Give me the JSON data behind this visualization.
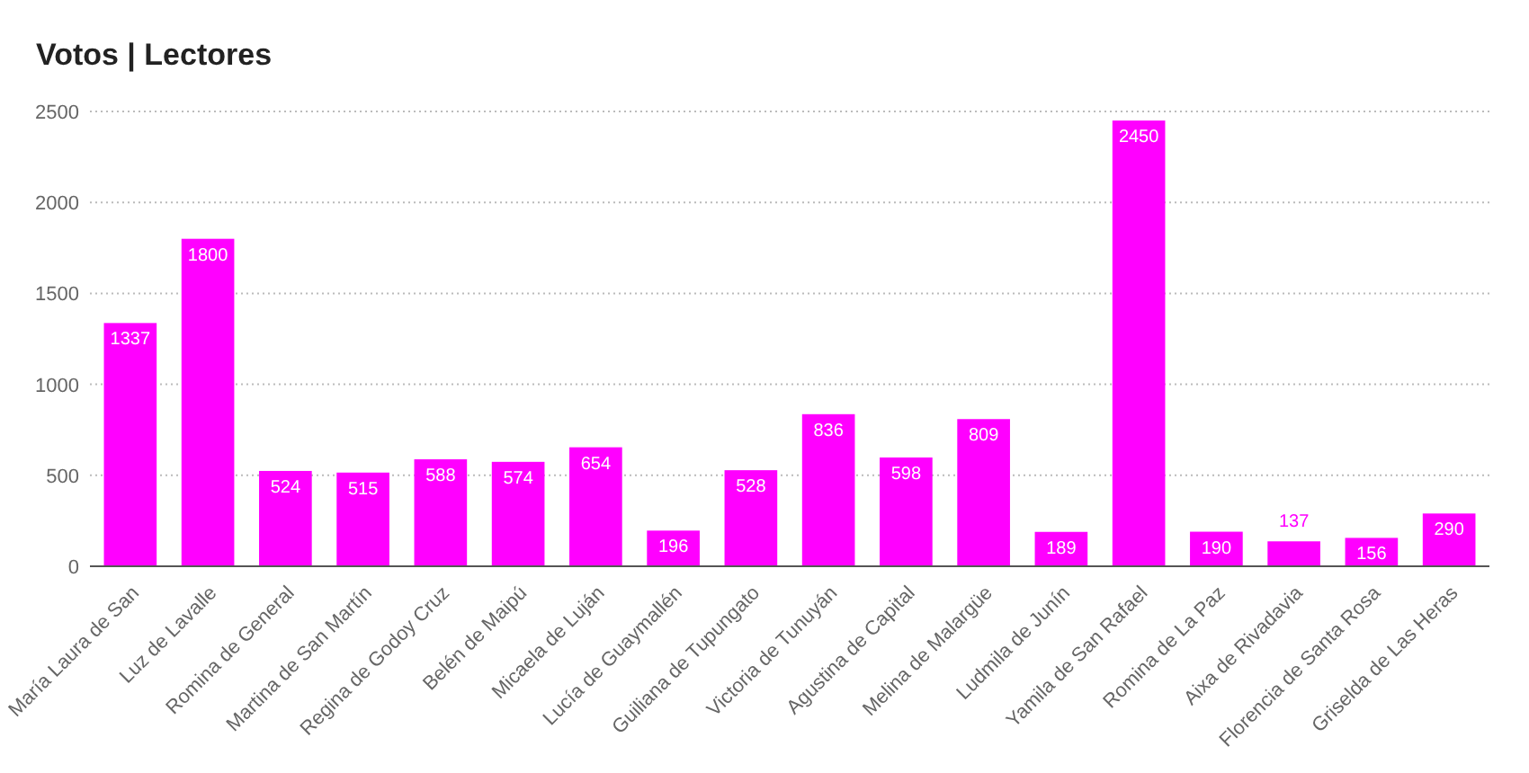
{
  "chart_data": {
    "type": "bar",
    "title": "Votos | Lectores",
    "categories": [
      "María Laura de San",
      "Luz de Lavalle",
      "Romina de General",
      "Martina de San Martín",
      "Regina de Godoy Cruz",
      "Belén de Maipú",
      "Micaela de Luján",
      "Lucía de Guaymallén",
      "Guiliana de Tupungato",
      "Victoria de Tunuyán",
      "Agustina de Capital",
      "Melina de Malargüe",
      "Ludmila de Junín",
      "Yamila de San Rafael",
      "Romina de La Paz",
      "Aixa de Rivadavia",
      "Florencia de Santa Rosa",
      "Griselda de Las Heras"
    ],
    "values": [
      1337,
      1800,
      524,
      515,
      588,
      574,
      654,
      196,
      528,
      836,
      598,
      809,
      189,
      2450,
      190,
      137,
      156,
      290
    ],
    "color": "#ff00ff",
    "ylim": [
      0,
      2500
    ],
    "yticks": [
      0,
      500,
      1000,
      1500,
      2000,
      2500
    ],
    "grid": "y",
    "data_labels": true
  }
}
